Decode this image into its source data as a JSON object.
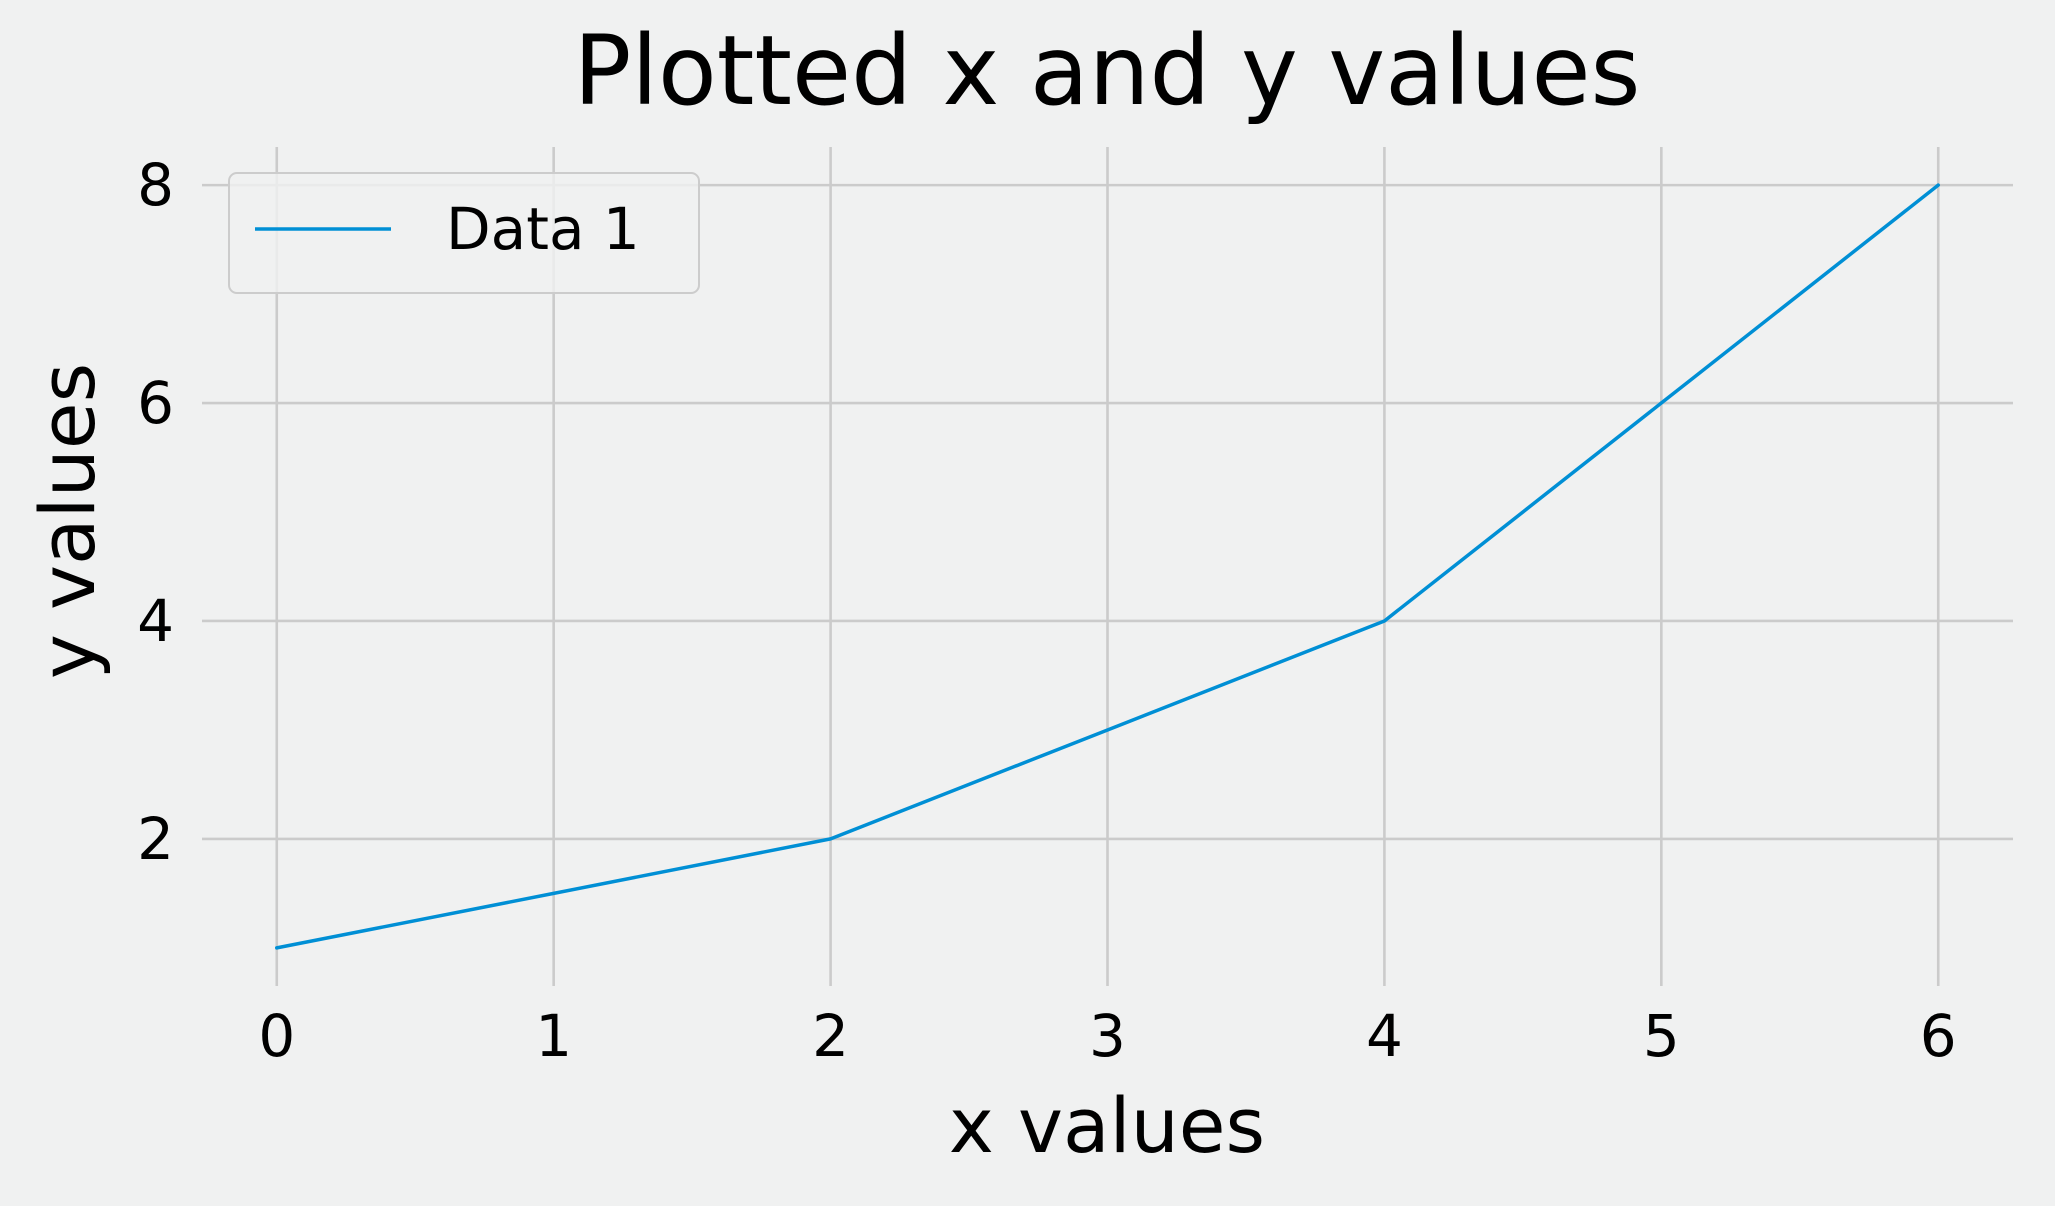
{
  "chart_data": {
    "type": "line",
    "title": "Plotted x and y values",
    "xlabel": "x values",
    "ylabel": "y values",
    "x": [
      0,
      1,
      2,
      3,
      4,
      5,
      6
    ],
    "series": [
      {
        "name": "Data 1",
        "color": "#008fd5",
        "values": [
          1,
          1.5,
          2,
          3,
          4,
          6,
          8
        ]
      }
    ],
    "xlim": [
      -0.27,
      6.27
    ],
    "ylim": [
      0.65,
      8.35
    ],
    "xticks": [
      0,
      1,
      2,
      3,
      4,
      5,
      6
    ],
    "yticks": [
      2,
      4,
      6,
      8
    ],
    "grid": true,
    "legend": "upper-left"
  },
  "colors": {
    "background": "#f0f1f1",
    "grid": "#cbcbcb",
    "text": "#000000"
  }
}
